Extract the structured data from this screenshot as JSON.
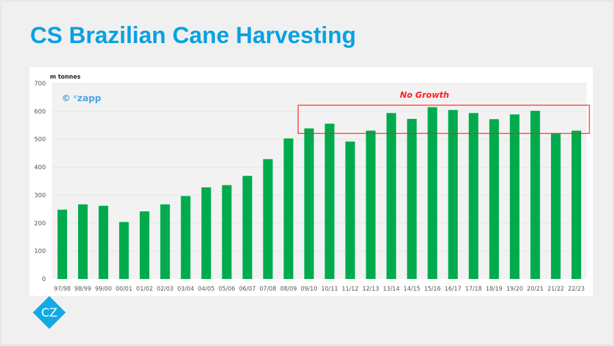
{
  "title": "CS Brazilian Cane Harvesting",
  "watermark": "© ᶜzapp",
  "logo_text": "CZ",
  "colors": {
    "title": "#0aa1e2",
    "bar": "#00ab4e",
    "annotation": "#ff2020",
    "logo": "#12aae6"
  },
  "chart_data": {
    "type": "bar",
    "title": "CS Brazilian Cane Harvesting",
    "ylabel": "m tonnes",
    "xlabel": "",
    "ylim": [
      0,
      700
    ],
    "yticks": [
      0,
      100,
      200,
      300,
      400,
      500,
      600,
      700
    ],
    "grid": true,
    "categories": [
      "97/98",
      "98/99",
      "99/00",
      "00/01",
      "01/02",
      "02/03",
      "03/04",
      "04/05",
      "05/06",
      "06/07",
      "07/08",
      "08/09",
      "09/10",
      "10/11",
      "11/12",
      "12/13",
      "13/14",
      "14/15",
      "15/16",
      "16/17",
      "17/18",
      "18/19",
      "19/20",
      "20/21",
      "21/22",
      "22/23"
    ],
    "values": [
      248,
      267,
      262,
      204,
      242,
      267,
      297,
      328,
      336,
      369,
      429,
      503,
      539,
      556,
      492,
      531,
      594,
      573,
      615,
      605,
      594,
      572,
      589,
      602,
      521,
      531
    ],
    "annotation": {
      "text": "No Growth",
      "from_category": "09/10",
      "to_category": "22/23",
      "value_range": [
        521,
        622
      ]
    }
  }
}
